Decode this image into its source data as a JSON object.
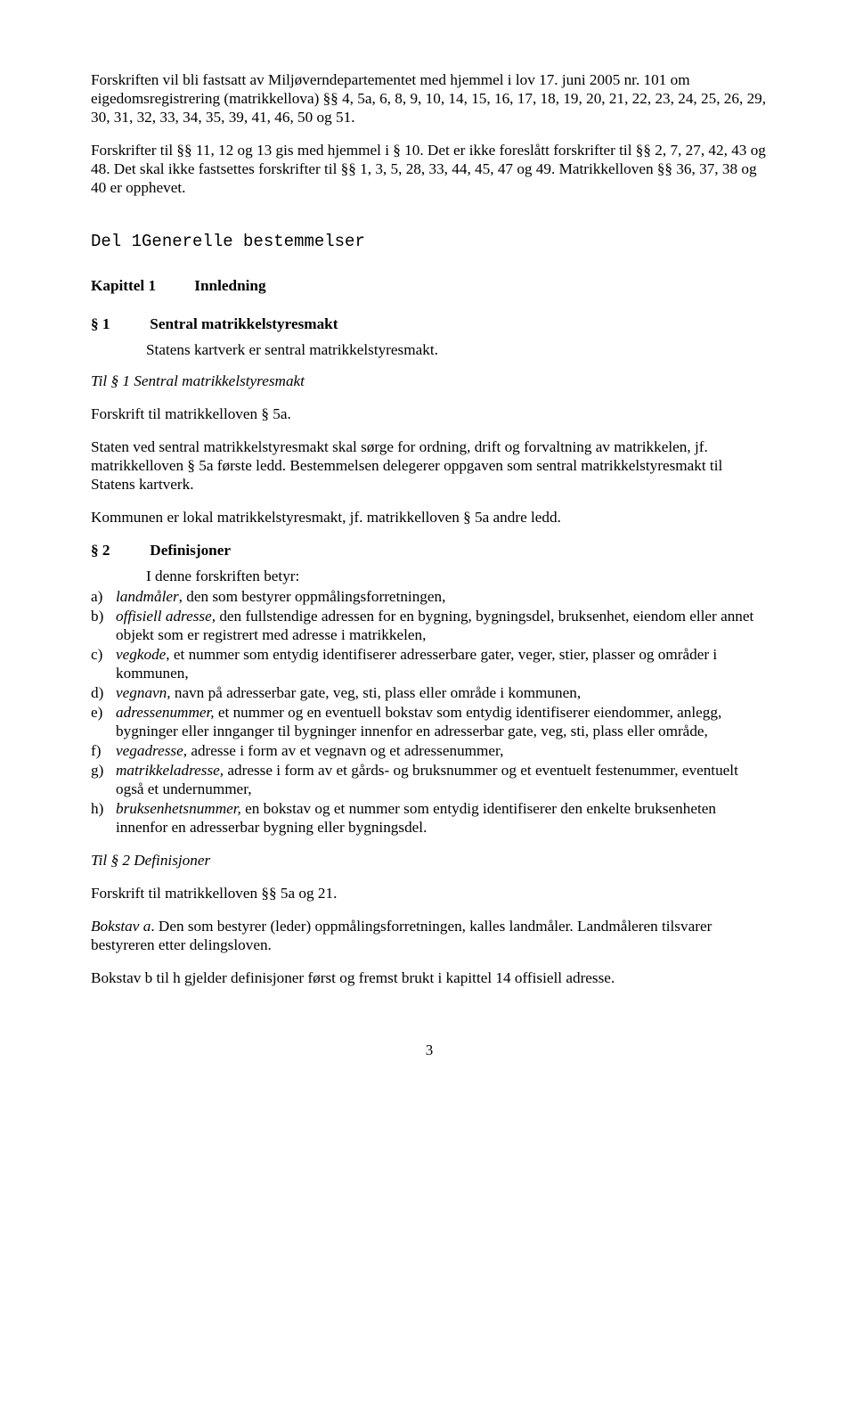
{
  "intro": {
    "p1": "Forskriften vil bli fastsatt av Miljøverndepartementet med hjemmel i lov 17. juni 2005 nr. 101 om eigedomsregistrering (matrikkellova) §§ 4, 5a, 6, 8, 9, 10, 14, 15, 16, 17, 18, 19, 20, 21, 22, 23, 24, 25, 26, 29, 30, 31, 32, 33, 34, 35, 39, 41, 46, 50 og 51.",
    "p2": "Forskrifter til §§ 11, 12 og 13 gis med hjemmel i § 10. Det er ikke foreslått forskrifter til §§ 2, 7, 27, 42, 43 og 48. Det skal ikke fastsettes forskrifter til §§ 1, 3, 5, 28, 33, 44, 45, 47 og 49. Matrikkelloven §§ 36, 37, 38 og 40 er opphevet."
  },
  "part_heading": "Del 1Generelle bestemmelser",
  "chapter1": {
    "num": "Kapittel 1",
    "title": "Innledning"
  },
  "s1": {
    "num": "§ 1",
    "title": "Sentral matrikkelstyresmakt",
    "body": "Statens kartverk er sentral matrikkelstyresmakt.",
    "til_heading": "Til § 1 Sentral matrikkelstyresmakt",
    "ref": "Forskrift til matrikkelloven § 5a.",
    "c1": "Staten ved sentral matrikkelstyresmakt skal sørge for ordning, drift og forvaltning av matrikkelen, jf. matrikkelloven § 5a første ledd. Bestemmelsen delegerer oppgaven som sentral matrikkelstyresmakt til Statens kartverk.",
    "c2": "Kommunen er lokal matrikkelstyresmakt, jf. matrikkelloven § 5a andre ledd."
  },
  "s2": {
    "num": "§ 2",
    "title": "Definisjoner",
    "lead": "I denne forskriften betyr:",
    "items": [
      {
        "m": "a)",
        "term": "landmåler",
        "rest": ", den som bestyrer oppmålingsforretningen,"
      },
      {
        "m": "b)",
        "term": "offisiell adresse,",
        "rest": " den fullstendige adressen for en bygning, bygningsdel, bruksenhet, eiendom eller annet objekt som er registrert med adresse i matrikkelen,"
      },
      {
        "m": "c)",
        "term": "vegkode",
        "rest": ", et nummer som entydig identifiserer adresserbare gater, veger, stier, plasser og områder i kommunen,"
      },
      {
        "m": "d)",
        "term": "vegnavn,",
        "rest": " navn på adresserbar gate, veg, sti, plass eller område i kommunen,"
      },
      {
        "m": "e)",
        "term": "adressenummer,",
        "rest": " et nummer og en eventuell bokstav som entydig identifiserer eiendommer, anlegg, bygninger eller innganger til bygninger innenfor en adresserbar gate, veg, sti, plass eller område,"
      },
      {
        "m": "f)",
        "term": "vegadresse,",
        "rest": " adresse i form av et vegnavn og et adressenummer,"
      },
      {
        "m": "g)",
        "term": "matrikkeladresse,",
        "rest": " adresse i form av et gårds- og bruksnummer og et eventuelt festenummer, eventuelt også et undernummer,"
      },
      {
        "m": "h)",
        "term": "bruksenhetsnummer,",
        "rest": " en bokstav og et nummer som entydig identifiserer den enkelte bruksenheten innenfor en adresserbar bygning eller bygningsdel."
      }
    ],
    "til_heading": "Til § 2 Definisjoner",
    "ref": "Forskrift til matrikkelloven §§ 5a og 21.",
    "c1_lead": "Bokstav a",
    "c1_rest": ". Den som bestyrer (leder) oppmålingsforretningen, kalles landmåler. Landmåleren tilsvarer bestyreren etter delingsloven.",
    "c2": "Bokstav b til h gjelder definisjoner først og fremst brukt i kapittel 14 offisiell adresse."
  },
  "page_number": "3"
}
